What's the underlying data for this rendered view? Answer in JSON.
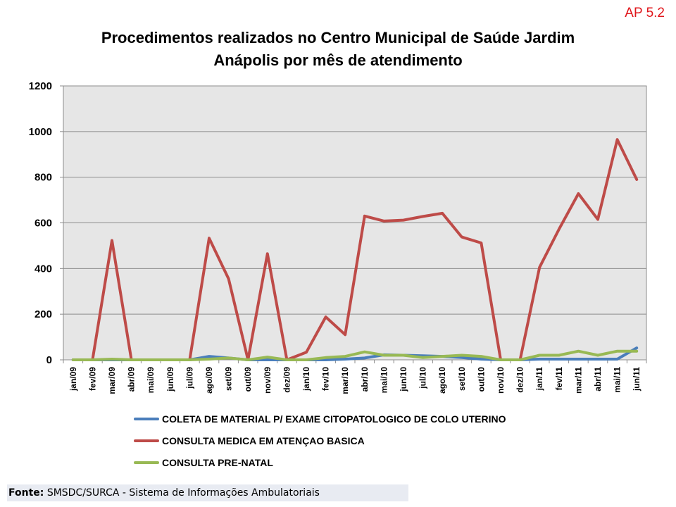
{
  "corner_tag": "AP 5.2",
  "chart_data": {
    "type": "line",
    "title_line1": "Procedimentos realizados no Centro Municipal de Saúde Jardim",
    "title_line2": "Anápolis por mês de atendimento",
    "xlabel": "",
    "ylabel": "",
    "ylim": [
      0,
      1200
    ],
    "yticks": [
      0,
      200,
      400,
      600,
      800,
      1000,
      1200
    ],
    "grid": true,
    "legend_position": "bottom",
    "categories": [
      "jan/09",
      "fev/09",
      "mar/09",
      "abr/09",
      "mai/09",
      "jun/09",
      "jul/09",
      "ago/09",
      "set/09",
      "out/09",
      "nov/09",
      "dez/09",
      "jan/10",
      "fev/10",
      "mar/10",
      "abr/10",
      "mai/10",
      "jun/10",
      "jul/10",
      "ago/10",
      "set/10",
      "out/10",
      "nov/10",
      "dez/10",
      "jan/11",
      "fev/11",
      "mar/11",
      "abr/11",
      "mai/11",
      "jun/11"
    ],
    "series": [
      {
        "name": "COLETA DE MATERIAL P/ EXAME CITOPATOLOGICO DE COLO UTERINO",
        "color": "#4a7ebb",
        "values": [
          0,
          0,
          0,
          0,
          0,
          0,
          0,
          15,
          8,
          0,
          0,
          0,
          0,
          0,
          3,
          8,
          22,
          20,
          18,
          15,
          10,
          3,
          0,
          0,
          3,
          3,
          3,
          3,
          3,
          52
        ]
      },
      {
        "name": "CONSULTA MEDICA EM ATENÇAO BASICA",
        "color": "#be4b48",
        "values": [
          0,
          0,
          523,
          0,
          0,
          0,
          0,
          533,
          355,
          0,
          465,
          0,
          33,
          188,
          110,
          630,
          608,
          612,
          628,
          642,
          538,
          512,
          0,
          0,
          405,
          572,
          728,
          615,
          965,
          790
        ]
      },
      {
        "name": "CONSULTA PRE-NATAL",
        "color": "#98b954",
        "values": [
          0,
          0,
          3,
          0,
          0,
          0,
          0,
          3,
          8,
          0,
          12,
          0,
          0,
          10,
          15,
          35,
          20,
          20,
          10,
          15,
          20,
          15,
          0,
          0,
          20,
          20,
          38,
          20,
          38,
          38
        ]
      }
    ]
  },
  "footer": {
    "label": "Fonte:",
    "text": " SMSDC/SURCA - Sistema de Informações Ambulatoriais"
  }
}
